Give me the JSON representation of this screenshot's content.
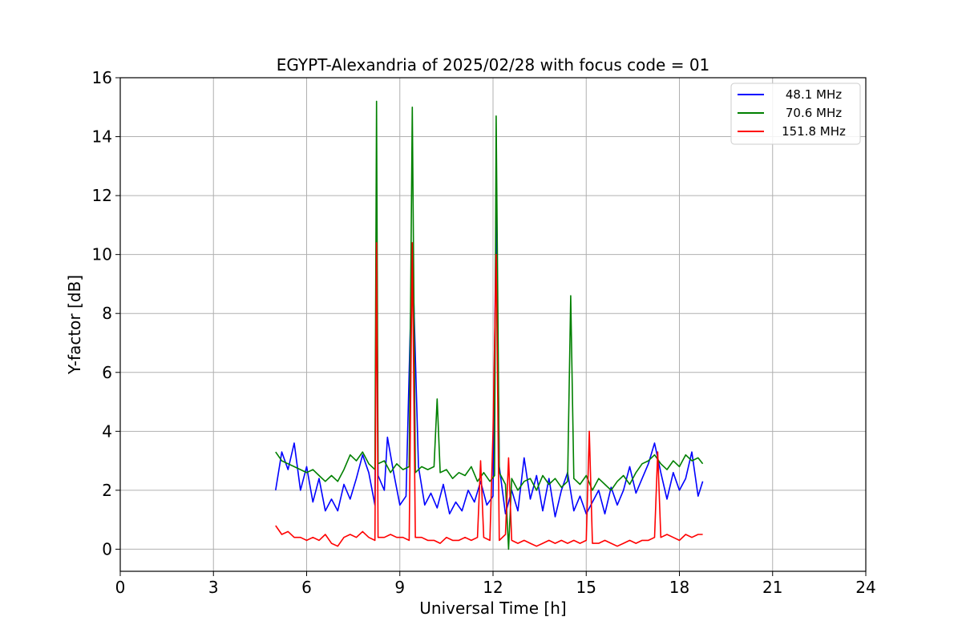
{
  "chart_data": {
    "type": "line",
    "title": "EGYPT-Alexandria of 2025/02/28 with focus code = 01",
    "xlabel": "Universal Time [h]",
    "ylabel": "Y-factor [dB]",
    "xlim": [
      0,
      24
    ],
    "ylim": [
      -0.75,
      16
    ],
    "xticks": [
      0,
      3,
      6,
      9,
      12,
      15,
      18,
      21,
      24
    ],
    "yticks": [
      0,
      2,
      4,
      6,
      8,
      10,
      12,
      14,
      16
    ],
    "grid": true,
    "legend_position": "top-right",
    "series": [
      {
        "name": " 48.1 MHz",
        "color": "#0000ff",
        "x": [
          5.0,
          5.2,
          5.4,
          5.6,
          5.8,
          6.0,
          6.2,
          6.4,
          6.6,
          6.8,
          7.0,
          7.2,
          7.4,
          7.6,
          7.8,
          8.0,
          8.2,
          8.25,
          8.3,
          8.5,
          8.6,
          8.8,
          9.0,
          9.2,
          9.4,
          9.6,
          9.8,
          10.0,
          10.2,
          10.4,
          10.6,
          10.8,
          11.0,
          11.2,
          11.4,
          11.6,
          11.8,
          12.0,
          12.1,
          12.2,
          12.4,
          12.6,
          12.8,
          13.0,
          13.2,
          13.4,
          13.6,
          13.8,
          14.0,
          14.2,
          14.4,
          14.6,
          14.8,
          15.0,
          15.2,
          15.4,
          15.6,
          15.8,
          16.0,
          16.2,
          16.4,
          16.6,
          16.8,
          17.0,
          17.2,
          17.4,
          17.6,
          17.8,
          18.0,
          18.2,
          18.4,
          18.6,
          18.75
        ],
        "values": [
          2.0,
          3.3,
          2.7,
          3.6,
          2.0,
          2.8,
          1.6,
          2.4,
          1.3,
          1.7,
          1.3,
          2.2,
          1.7,
          2.4,
          3.2,
          2.6,
          1.5,
          12.0,
          2.5,
          2.0,
          3.8,
          2.6,
          1.5,
          1.8,
          10.2,
          2.8,
          1.5,
          1.9,
          1.4,
          2.2,
          1.2,
          1.6,
          1.3,
          2.0,
          1.6,
          2.3,
          1.5,
          1.8,
          11.5,
          2.8,
          1.2,
          2.0,
          1.3,
          3.1,
          1.7,
          2.5,
          1.3,
          2.4,
          1.1,
          2.0,
          2.6,
          1.3,
          1.8,
          1.2,
          1.6,
          2.0,
          1.2,
          2.1,
          1.5,
          2.0,
          2.8,
          1.9,
          2.4,
          2.9,
          3.6,
          2.6,
          1.7,
          2.6,
          2.0,
          2.4,
          3.3,
          1.8,
          2.3
        ]
      },
      {
        "name": " 70.6 MHz",
        "color": "#008000",
        "x": [
          5.0,
          5.2,
          5.4,
          5.6,
          5.8,
          6.0,
          6.2,
          6.4,
          6.6,
          6.8,
          7.0,
          7.2,
          7.4,
          7.6,
          7.8,
          8.0,
          8.2,
          8.25,
          8.3,
          8.5,
          8.7,
          8.9,
          9.1,
          9.3,
          9.4,
          9.5,
          9.7,
          9.9,
          10.1,
          10.2,
          10.3,
          10.5,
          10.7,
          10.9,
          11.1,
          11.3,
          11.5,
          11.7,
          11.9,
          12.05,
          12.1,
          12.2,
          12.4,
          12.5,
          12.6,
          12.8,
          13.0,
          13.2,
          13.4,
          13.6,
          13.8,
          14.0,
          14.2,
          14.4,
          14.5,
          14.6,
          14.8,
          15.0,
          15.2,
          15.4,
          15.6,
          15.8,
          16.0,
          16.2,
          16.4,
          16.6,
          16.8,
          17.0,
          17.2,
          17.4,
          17.6,
          17.8,
          18.0,
          18.2,
          18.4,
          18.6,
          18.75
        ],
        "values": [
          3.3,
          3.0,
          2.9,
          2.8,
          2.7,
          2.6,
          2.7,
          2.5,
          2.3,
          2.5,
          2.3,
          2.7,
          3.2,
          3.0,
          3.3,
          2.9,
          2.7,
          15.2,
          2.9,
          3.0,
          2.6,
          2.9,
          2.7,
          2.8,
          15.0,
          2.6,
          2.8,
          2.7,
          2.8,
          5.1,
          2.6,
          2.7,
          2.4,
          2.6,
          2.5,
          2.8,
          2.3,
          2.6,
          2.3,
          2.5,
          14.7,
          2.6,
          2.2,
          0.0,
          2.4,
          2.0,
          2.3,
          2.4,
          2.0,
          2.5,
          2.2,
          2.4,
          2.1,
          2.3,
          8.6,
          2.4,
          2.2,
          2.5,
          2.0,
          2.4,
          2.2,
          2.0,
          2.3,
          2.5,
          2.2,
          2.6,
          2.9,
          3.0,
          3.2,
          2.9,
          2.7,
          3.0,
          2.8,
          3.2,
          3.0,
          3.1,
          2.9
        ]
      },
      {
        "name": "151.8 MHz",
        "color": "#ff0000",
        "x": [
          5.0,
          5.2,
          5.4,
          5.6,
          5.8,
          6.0,
          6.2,
          6.4,
          6.6,
          6.8,
          7.0,
          7.2,
          7.4,
          7.6,
          7.8,
          8.0,
          8.2,
          8.25,
          8.3,
          8.5,
          8.7,
          8.9,
          9.1,
          9.3,
          9.4,
          9.5,
          9.7,
          9.9,
          10.1,
          10.3,
          10.5,
          10.7,
          10.9,
          11.1,
          11.3,
          11.5,
          11.6,
          11.7,
          11.9,
          12.0,
          12.1,
          12.2,
          12.4,
          12.5,
          12.6,
          12.8,
          13.0,
          13.2,
          13.4,
          13.6,
          13.8,
          14.0,
          14.2,
          14.4,
          14.6,
          14.8,
          15.0,
          15.1,
          15.2,
          15.4,
          15.6,
          15.8,
          16.0,
          16.2,
          16.4,
          16.6,
          16.8,
          17.0,
          17.2,
          17.3,
          17.4,
          17.6,
          17.8,
          18.0,
          18.2,
          18.4,
          18.6,
          18.75
        ],
        "values": [
          0.8,
          0.5,
          0.6,
          0.4,
          0.4,
          0.3,
          0.4,
          0.3,
          0.5,
          0.2,
          0.1,
          0.4,
          0.5,
          0.4,
          0.6,
          0.4,
          0.3,
          10.4,
          0.4,
          0.4,
          0.5,
          0.4,
          0.4,
          0.3,
          10.4,
          0.4,
          0.4,
          0.3,
          0.3,
          0.2,
          0.4,
          0.3,
          0.3,
          0.4,
          0.3,
          0.4,
          3.0,
          0.4,
          0.3,
          4.0,
          10.0,
          0.3,
          0.5,
          3.1,
          0.3,
          0.2,
          0.3,
          0.2,
          0.1,
          0.2,
          0.3,
          0.2,
          0.3,
          0.2,
          0.3,
          0.2,
          0.3,
          4.0,
          0.2,
          0.2,
          0.3,
          0.2,
          0.1,
          0.2,
          0.3,
          0.2,
          0.3,
          0.3,
          0.4,
          3.3,
          0.4,
          0.5,
          0.4,
          0.3,
          0.5,
          0.4,
          0.5,
          0.5
        ]
      }
    ]
  }
}
